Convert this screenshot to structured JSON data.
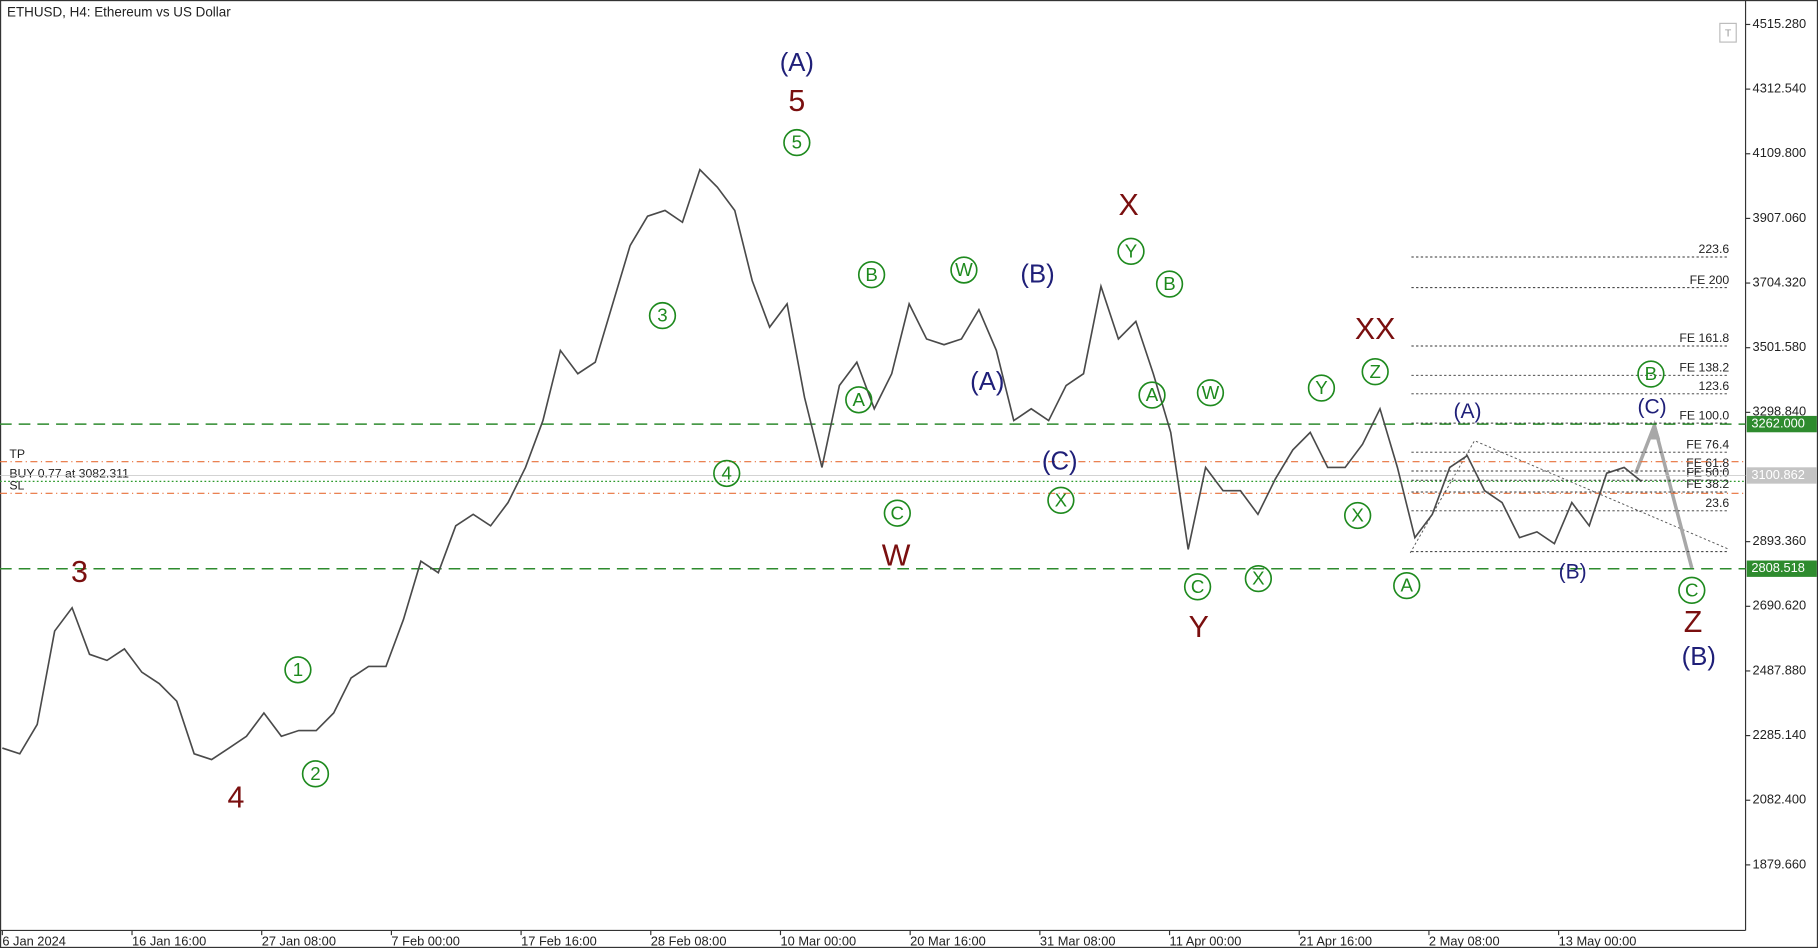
{
  "chart_data": {
    "type": "line",
    "title": "ETHUSD, H4:  Ethereum vs US Dollar",
    "toolbar_icon": "T",
    "color": "#4a4a4a",
    "values": [
      2246,
      2228,
      2320,
      2613,
      2686,
      2540,
      2521,
      2557,
      2484,
      2448,
      2393,
      2228,
      2210,
      2246,
      2283,
      2356,
      2283,
      2301,
      2301,
      2356,
      2466,
      2502,
      2502,
      2649,
      2832,
      2796,
      2943,
      2979,
      2943,
      3016,
      3126,
      3273,
      3493,
      3420,
      3456,
      3639,
      3822,
      3914,
      3932,
      3895,
      4060,
      4005,
      3932,
      3712,
      3566,
      3639,
      3346,
      3126,
      3383,
      3456,
      3310,
      3420,
      3639,
      3529,
      3511,
      3529,
      3621,
      3493,
      3273,
      3310,
      3273,
      3383,
      3420,
      3694,
      3529,
      3584,
      3420,
      3236,
      2869,
      3126,
      3053,
      3053,
      2979,
      3090,
      3181,
      3236,
      3126,
      3126,
      3199,
      3310,
      3126,
      2906,
      2979,
      3126,
      3163,
      3053,
      3016,
      2906,
      2924,
      2887,
      3016,
      2943,
      3108,
      3126,
      3082
    ],
    "x_axis_labels": [
      "6 Jan 2024",
      "16 Jan 16:00",
      "27 Jan 08:00",
      "7 Feb 00:00",
      "17 Feb 16:00",
      "28 Feb 08:00",
      "10 Mar 00:00",
      "20 Mar 16:00",
      "31 Mar 08:00",
      "11 Apr 00:00",
      "21 Apr 16:00",
      "2 May 08:00",
      "13 May 00:00"
    ],
    "ylim": [
      1674,
      4592
    ],
    "yticks": [
      {
        "value": 4515.28,
        "label": "4515.280"
      },
      {
        "value": 4312.54,
        "label": "4312.540"
      },
      {
        "value": 4109.8,
        "label": "4109.800"
      },
      {
        "value": 3907.06,
        "label": "3907.060"
      },
      {
        "value": 3704.32,
        "label": "3704.320"
      },
      {
        "value": 3501.58,
        "label": "3501.580"
      },
      {
        "value": 3298.84,
        "label": "3298.840"
      },
      {
        "value": 2893.36,
        "label": "2893.360"
      },
      {
        "value": 2690.62,
        "label": "2690.620"
      },
      {
        "value": 2487.88,
        "label": "2487.880"
      },
      {
        "value": 2285.14,
        "label": "2285.140"
      },
      {
        "value": 2082.4,
        "label": "2082.400"
      },
      {
        "value": 1879.66,
        "label": "1879.660"
      }
    ],
    "levels": [
      {
        "value": 3262,
        "label": "3262.000",
        "color": "#2e8b2e"
      },
      {
        "value": 2808.518,
        "label": "2808.518",
        "color": "#2e8b2e"
      }
    ],
    "current_price": {
      "value": 3100.862,
      "label": "3100.862",
      "color": "#c4c4c4"
    },
    "trade": [
      {
        "label": "TP",
        "value": 3144,
        "color": "#e8703a"
      },
      {
        "label": "BUY 0.77 at 3082.311",
        "value": 3082.311,
        "color": "#2e9b2e"
      },
      {
        "label": "SL",
        "value": 3045,
        "color": "#e8703a"
      }
    ],
    "fibo": [
      {
        "label": "223.6",
        "value": 3786
      },
      {
        "label": "FE 200",
        "value": 3690
      },
      {
        "label": "FE 161.8",
        "value": 3507
      },
      {
        "label": "FE 138.2",
        "value": 3415
      },
      {
        "label": "123.6",
        "value": 3357
      },
      {
        "label": "FE 100.0",
        "value": 3265
      },
      {
        "label": "FE 76.4",
        "value": 3174
      },
      {
        "label": "FE 61.8",
        "value": 3115
      },
      {
        "label": "FE 50.0",
        "value": 3086
      },
      {
        "label": "FE 38.2",
        "value": 3049
      },
      {
        "label": "23.6",
        "value": 2990
      },
      {
        "label": null,
        "value": 2862
      }
    ],
    "annotations": [
      {
        "text": "3",
        "color": "#7a0f0f",
        "circled": false
      },
      {
        "text": "4",
        "color": "#7a0f0f",
        "circled": false
      },
      {
        "text": "5",
        "color": "#7a0f0f",
        "circled": false
      },
      {
        "text": "W",
        "color": "#7a0f0f",
        "circled": false
      },
      {
        "text": "X",
        "color": "#7a0f0f",
        "circled": false
      },
      {
        "text": "Y",
        "color": "#7a0f0f",
        "circled": false
      },
      {
        "text": "XX",
        "color": "#7a0f0f",
        "circled": false
      },
      {
        "text": "Z",
        "color": "#7a0f0f",
        "circled": false
      },
      {
        "text": "(A)",
        "color": "#1f1f78",
        "circled": false
      },
      {
        "text": "(A)",
        "color": "#1f1f78",
        "circled": false
      },
      {
        "text": "(B)",
        "color": "#1f1f78",
        "circled": false
      },
      {
        "text": "(C)",
        "color": "#1f1f78",
        "circled": false
      },
      {
        "text": "(A)",
        "color": "#1f1f78",
        "circled": false
      },
      {
        "text": "(C)",
        "color": "#1f1f78",
        "circled": false
      },
      {
        "text": "(B)",
        "color": "#1f1f78",
        "circled": false
      },
      {
        "text": "(B)",
        "color": "#1f1f78",
        "circled": false
      },
      {
        "text": "3",
        "color": "#1e8a1e",
        "circled": true
      },
      {
        "text": "4",
        "color": "#1e8a1e",
        "circled": true
      },
      {
        "text": "5",
        "color": "#1e8a1e",
        "circled": true
      },
      {
        "text": "1",
        "color": "#1e8a1e",
        "circled": true
      },
      {
        "text": "2",
        "color": "#1e8a1e",
        "circled": true
      },
      {
        "text": "A",
        "color": "#1e8a1e",
        "circled": true
      },
      {
        "text": "B",
        "color": "#1e8a1e",
        "circled": true
      },
      {
        "text": "C",
        "color": "#1e8a1e",
        "circled": true
      },
      {
        "text": "W",
        "color": "#1e8a1e",
        "circled": true
      },
      {
        "text": "Y",
        "color": "#1e8a1e",
        "circled": true
      },
      {
        "text": "B",
        "color": "#1e8a1e",
        "circled": true
      },
      {
        "text": "A",
        "color": "#1e8a1e",
        "circled": true
      },
      {
        "text": "W",
        "color": "#1e8a1e",
        "circled": true
      },
      {
        "text": "X",
        "color": "#1e8a1e",
        "circled": true
      },
      {
        "text": "C",
        "color": "#1e8a1e",
        "circled": true
      },
      {
        "text": "X",
        "color": "#1e8a1e",
        "circled": true
      },
      {
        "text": "Y",
        "color": "#1e8a1e",
        "circled": true
      },
      {
        "text": "Z",
        "color": "#1e8a1e",
        "circled": true
      },
      {
        "text": "X",
        "color": "#1e8a1e",
        "circled": true
      },
      {
        "text": "A",
        "color": "#1e8a1e",
        "circled": true
      },
      {
        "text": "B",
        "color": "#1e8a1e",
        "circled": true
      },
      {
        "text": "C",
        "color": "#1e8a1e",
        "circled": true
      }
    ]
  }
}
